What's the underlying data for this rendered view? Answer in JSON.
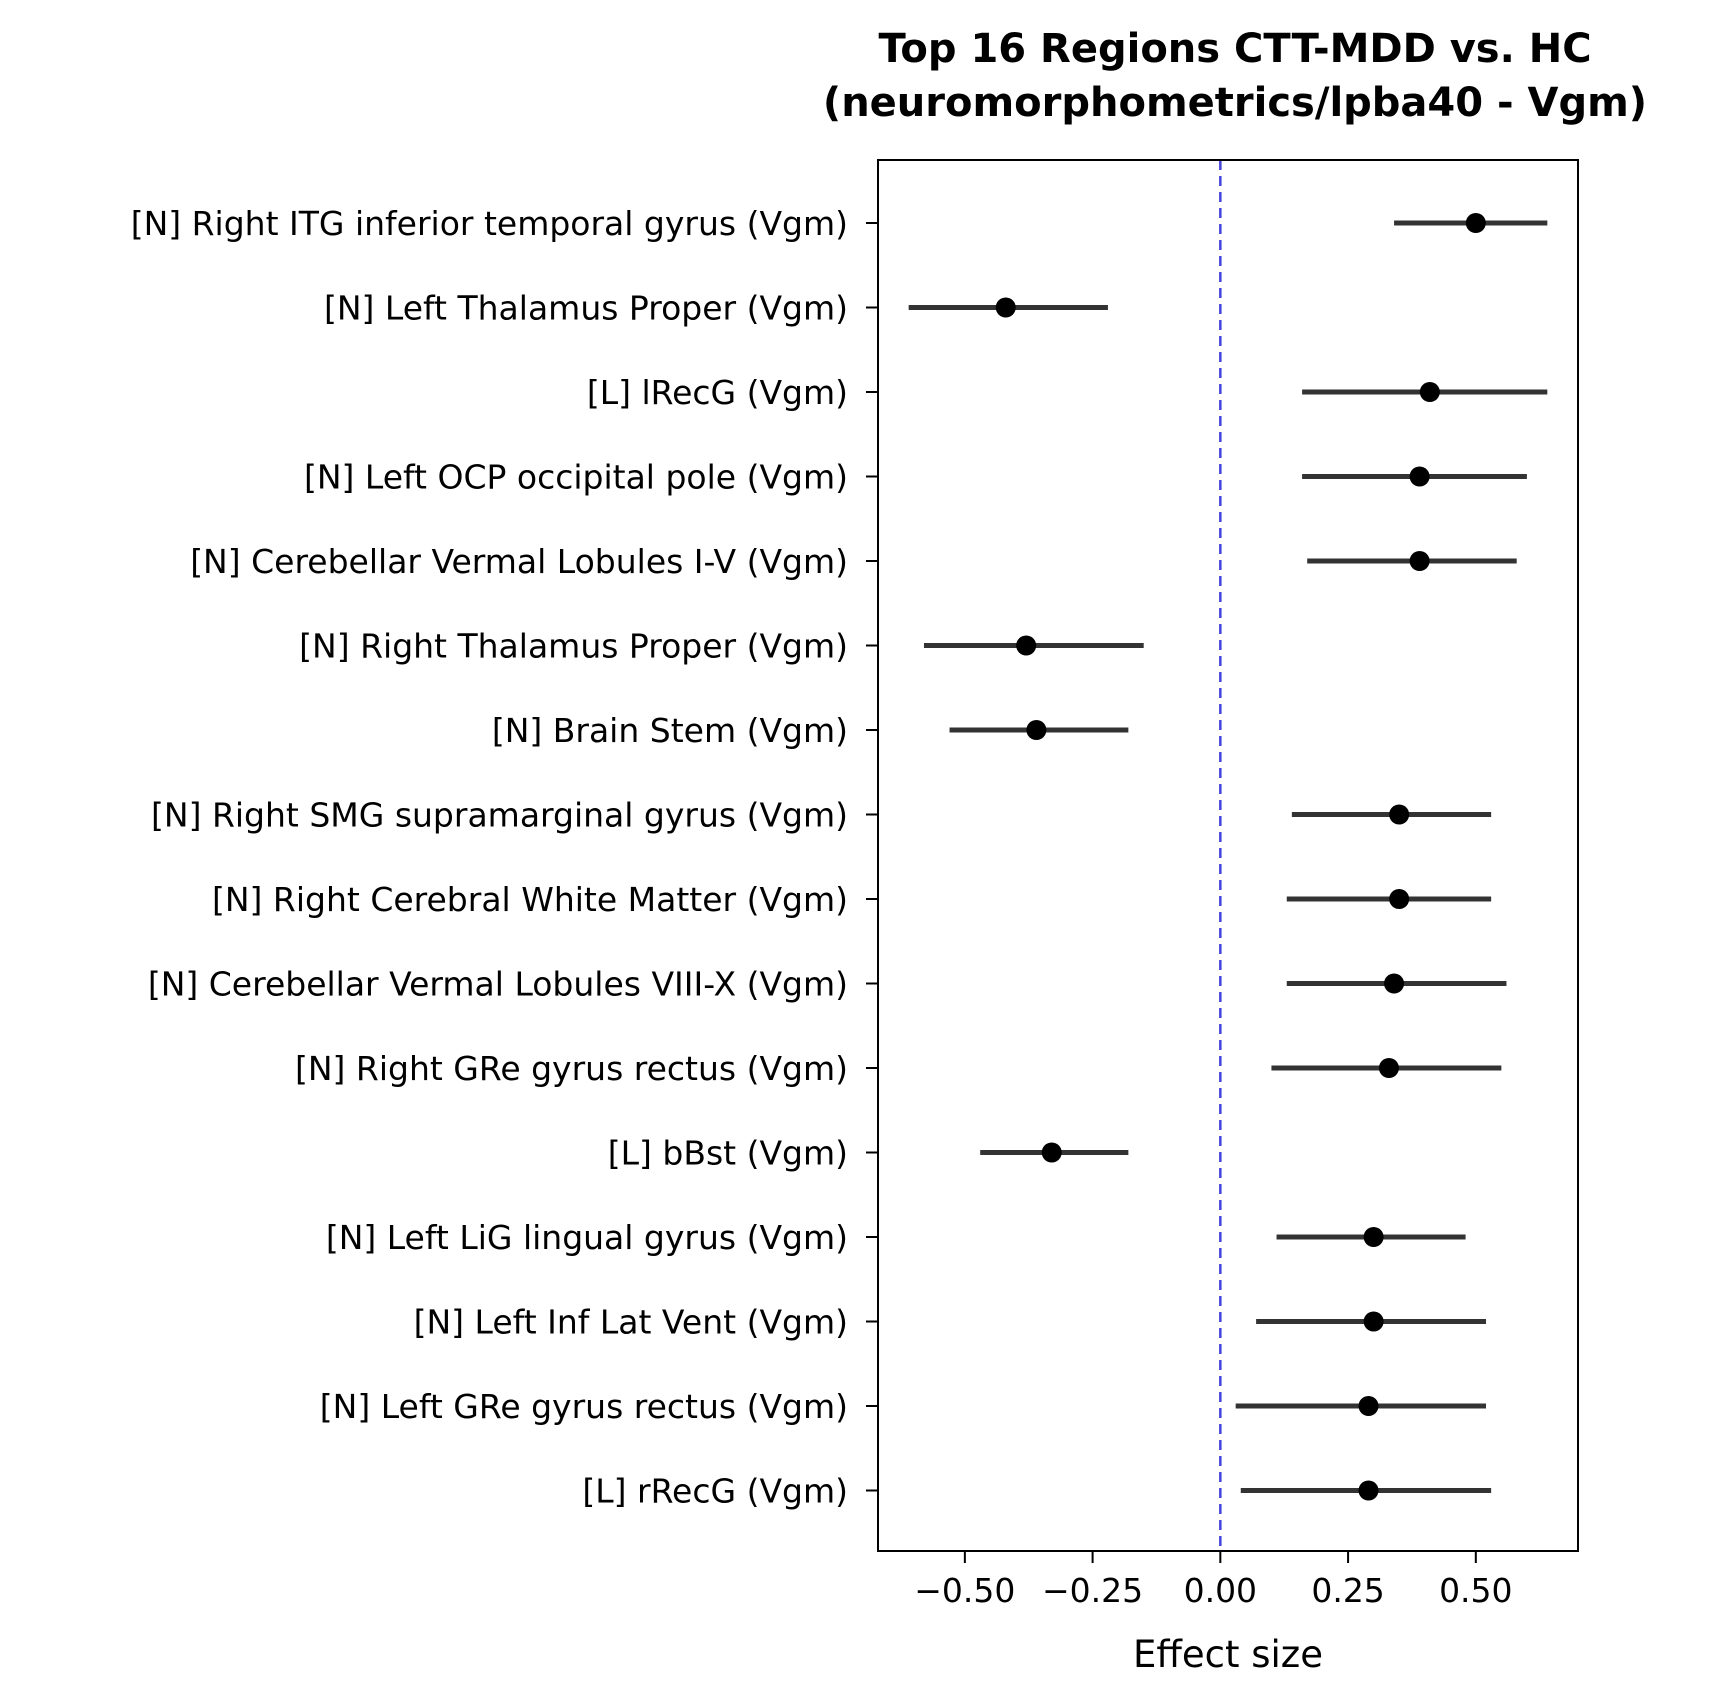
{
  "chart_data": {
    "type": "forest",
    "title_line1": "Top 16 Regions CTT-MDD vs. HC",
    "title_line2": "(neuromorphometrics/lpba40 - Vgm)",
    "xlabel": "Effect size",
    "ylabel": "",
    "xlim": [
      -0.67,
      0.7
    ],
    "xticks": [
      -0.5,
      -0.25,
      0.0,
      0.25,
      0.5
    ],
    "xtick_labels": [
      "−0.50",
      "−0.25",
      "0.00",
      "0.25",
      "0.50"
    ],
    "reference_line": {
      "x": 0.0,
      "style": "dashed",
      "color": "#4444dd"
    },
    "grid": false,
    "colors": {
      "point": "#000000",
      "ci_line": "#333333",
      "axes": "#000000"
    },
    "regions": [
      {
        "label": "[N] Right ITG inferior temporal gyrus (Vgm)",
        "effect": 0.5,
        "ci_low": 0.34,
        "ci_high": 0.64
      },
      {
        "label": "[N] Left Thalamus Proper (Vgm)",
        "effect": -0.42,
        "ci_low": -0.61,
        "ci_high": -0.22
      },
      {
        "label": "[L] lRecG (Vgm)",
        "effect": 0.41,
        "ci_low": 0.16,
        "ci_high": 0.64
      },
      {
        "label": "[N] Left OCP occipital pole (Vgm)",
        "effect": 0.39,
        "ci_low": 0.16,
        "ci_high": 0.6
      },
      {
        "label": "[N] Cerebellar Vermal Lobules I-V (Vgm)",
        "effect": 0.39,
        "ci_low": 0.17,
        "ci_high": 0.58
      },
      {
        "label": "[N] Right Thalamus Proper (Vgm)",
        "effect": -0.38,
        "ci_low": -0.58,
        "ci_high": -0.15
      },
      {
        "label": "[N] Brain Stem (Vgm)",
        "effect": -0.36,
        "ci_low": -0.53,
        "ci_high": -0.18
      },
      {
        "label": "[N] Right SMG supramarginal gyrus (Vgm)",
        "effect": 0.35,
        "ci_low": 0.14,
        "ci_high": 0.53
      },
      {
        "label": "[N] Right Cerebral White Matter (Vgm)",
        "effect": 0.35,
        "ci_low": 0.13,
        "ci_high": 0.53
      },
      {
        "label": "[N] Cerebellar Vermal Lobules VIII-X (Vgm)",
        "effect": 0.34,
        "ci_low": 0.13,
        "ci_high": 0.56
      },
      {
        "label": "[N] Right GRe gyrus rectus (Vgm)",
        "effect": 0.33,
        "ci_low": 0.1,
        "ci_high": 0.55
      },
      {
        "label": "[L] bBst (Vgm)",
        "effect": -0.33,
        "ci_low": -0.47,
        "ci_high": -0.18
      },
      {
        "label": "[N] Left LiG lingual gyrus (Vgm)",
        "effect": 0.3,
        "ci_low": 0.11,
        "ci_high": 0.48
      },
      {
        "label": "[N] Left Inf Lat Vent (Vgm)",
        "effect": 0.3,
        "ci_low": 0.07,
        "ci_high": 0.52
      },
      {
        "label": "[N] Left GRe gyrus rectus (Vgm)",
        "effect": 0.29,
        "ci_low": 0.03,
        "ci_high": 0.52
      },
      {
        "label": "[L] rRecG (Vgm)",
        "effect": 0.29,
        "ci_low": 0.04,
        "ci_high": 0.53
      }
    ]
  }
}
